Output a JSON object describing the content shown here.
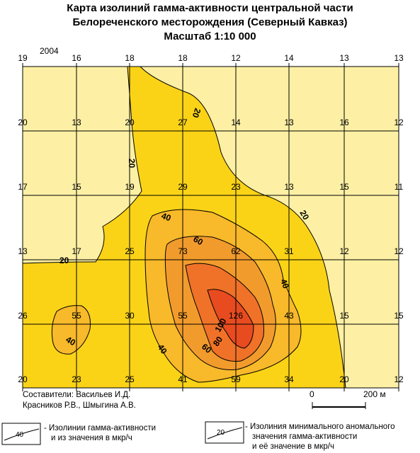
{
  "title": {
    "line1": "Карта изолиний гамма-активности центральной части",
    "line2": "Белореченского месторождения (Северный Кавказ)",
    "line3": "Масштаб 1:10 000"
  },
  "year": "2004",
  "grid_values": [
    [
      "19",
      "16",
      "18",
      "18",
      "12",
      "14",
      "13",
      "13"
    ],
    [
      "20",
      "13",
      "20",
      "27",
      "14",
      "13",
      "16",
      "12"
    ],
    [
      "17",
      "15",
      "19",
      "29",
      "23",
      "13",
      "15",
      "11"
    ],
    [
      "13",
      "17",
      "25",
      "73",
      "62",
      "31",
      "12",
      "12"
    ],
    [
      "26",
      "55",
      "30",
      "55",
      "126",
      "43",
      "15",
      "15"
    ],
    [
      "20",
      "23",
      "25",
      "41",
      "59",
      "34",
      "20",
      "12"
    ]
  ],
  "contour_labels": [
    {
      "id": "20-top",
      "text": "20"
    },
    {
      "id": "20-left",
      "text": "20"
    },
    {
      "id": "20-right",
      "text": "20"
    },
    {
      "id": "20-bottom-left",
      "text": "20"
    },
    {
      "id": "40-upper",
      "text": "40"
    },
    {
      "id": "40-right",
      "text": "40"
    },
    {
      "id": "40-left-blob",
      "text": "40"
    },
    {
      "id": "40-lower",
      "text": "40"
    },
    {
      "id": "60-upper",
      "text": "60"
    },
    {
      "id": "60-lower",
      "text": "60"
    },
    {
      "id": "80-lower",
      "text": "80"
    },
    {
      "id": "100",
      "text": "100"
    }
  ],
  "scale_bar": {
    "zero": "0",
    "length": "200 м"
  },
  "credits": {
    "line1": "Составители: Васильев И.Д.",
    "line2": "Красников Р.В., Шмыгина А.В."
  },
  "legend": {
    "item1_sample": "40",
    "item1_line1": "- Изолинии гамма-активности",
    "item1_line2": "и из значения в мкр/ч",
    "item2_sample": "20",
    "item2_line1": "- Изолиния минимального аномального",
    "item2_line2": "значения гамма-активности",
    "item2_line3": "и её значение в мкр/ч"
  },
  "colors": {
    "background_zone": "#fdf0a4",
    "zone_20_40": "#fad317",
    "zone_40_60": "#f8b92a",
    "zone_60_80": "#f29b2d",
    "zone_80_100": "#ef7228",
    "zone_100_plus": "#e84b1f"
  }
}
